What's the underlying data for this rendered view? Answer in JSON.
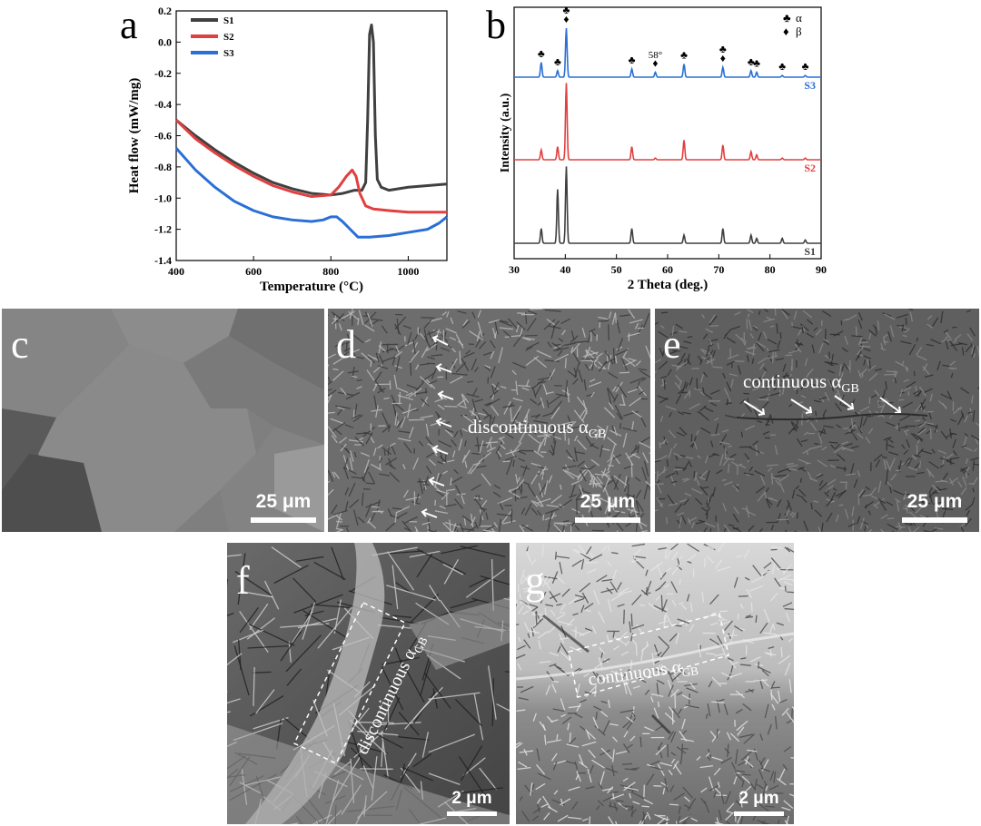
{
  "panels": {
    "a": {
      "letter": "a",
      "chart_data": {
        "type": "line",
        "xlabel": "Temperature (°C)",
        "ylabel": "Heat flow (mW/mg)",
        "xlim": [
          400,
          1100
        ],
        "ylim": [
          -1.4,
          0.2
        ],
        "xticks": [
          400,
          600,
          800,
          1000
        ],
        "yticks": [
          -1.4,
          -1.2,
          -1.0,
          -0.8,
          -0.6,
          -0.4,
          -0.2,
          0.0,
          0.2
        ],
        "ytick_labels": [
          "-1.4",
          "-1.2",
          "-1.0",
          "-0.8",
          "-0.6",
          "-0.4",
          "-0.2",
          "0.0",
          "0.2"
        ],
        "legend_position": "top-left",
        "series": [
          {
            "name": "S1",
            "color": "#404040",
            "x": [
              400,
              450,
              500,
              550,
              600,
              650,
              700,
              750,
              800,
              830,
              860,
              880,
              890,
              895,
              900,
              905,
              910,
              915,
              920,
              930,
              950,
              1000,
              1050,
              1100
            ],
            "y": [
              -0.5,
              -0.6,
              -0.69,
              -0.77,
              -0.84,
              -0.9,
              -0.94,
              -0.97,
              -0.98,
              -0.97,
              -0.95,
              -0.95,
              -0.9,
              -0.5,
              0.05,
              0.11,
              0.0,
              -0.6,
              -0.88,
              -0.93,
              -0.95,
              -0.93,
              -0.92,
              -0.91
            ]
          },
          {
            "name": "S2",
            "color": "#e04040",
            "x": [
              400,
              450,
              500,
              550,
              600,
              650,
              700,
              750,
              800,
              820,
              840,
              855,
              865,
              875,
              890,
              910,
              950,
              1000,
              1050,
              1100
            ],
            "y": [
              -0.5,
              -0.62,
              -0.71,
              -0.79,
              -0.86,
              -0.92,
              -0.96,
              -0.99,
              -0.98,
              -0.93,
              -0.86,
              -0.82,
              -0.86,
              -0.97,
              -1.05,
              -1.07,
              -1.08,
              -1.09,
              -1.09,
              -1.09
            ]
          },
          {
            "name": "S3",
            "color": "#2a6fd6",
            "x": [
              400,
              450,
              500,
              550,
              600,
              650,
              700,
              750,
              780,
              800,
              815,
              830,
              850,
              870,
              900,
              950,
              1000,
              1050,
              1080,
              1100
            ],
            "y": [
              -0.68,
              -0.82,
              -0.93,
              -1.02,
              -1.08,
              -1.12,
              -1.14,
              -1.15,
              -1.14,
              -1.12,
              -1.12,
              -1.15,
              -1.2,
              -1.25,
              -1.25,
              -1.24,
              -1.22,
              -1.2,
              -1.16,
              -1.12
            ]
          }
        ]
      }
    },
    "b": {
      "letter": "b",
      "chart_data": {
        "type": "line",
        "xlabel": "2 Theta (deg.)",
        "ylabel": "Intensity (a.u.)",
        "xlim": [
          30,
          90
        ],
        "xticks": [
          30,
          40,
          50,
          60,
          70,
          80,
          90
        ],
        "legend": [
          {
            "symbol": "♣",
            "label": "α"
          },
          {
            "symbol": "♦",
            "label": "β"
          }
        ],
        "legend_position": "top-right",
        "annotation": "58°",
        "peak_markers": [
          {
            "x": 35.3,
            "symbol": "♣"
          },
          {
            "x": 38.5,
            "symbol": "♣"
          },
          {
            "x": 40.2,
            "symbol": "♣♦"
          },
          {
            "x": 53.0,
            "symbol": "♣"
          },
          {
            "x": 57.6,
            "symbol": "♦"
          },
          {
            "x": 63.2,
            "symbol": "♣"
          },
          {
            "x": 70.8,
            "symbol": "♣♦"
          },
          {
            "x": 76.3,
            "symbol": "♣"
          },
          {
            "x": 77.4,
            "symbol": "♣"
          },
          {
            "x": 82.4,
            "symbol": "♣"
          },
          {
            "x": 86.9,
            "symbol": "♣"
          }
        ],
        "series": [
          {
            "name": "S1",
            "color": "#404040",
            "peaks": [
              [
                35.3,
                0.09
              ],
              [
                38.5,
                0.33
              ],
              [
                40.2,
                0.47
              ],
              [
                53.0,
                0.09
              ],
              [
                63.2,
                0.05
              ],
              [
                70.8,
                0.09
              ],
              [
                76.3,
                0.05
              ],
              [
                77.4,
                0.03
              ],
              [
                82.4,
                0.03
              ],
              [
                86.9,
                0.02
              ]
            ]
          },
          {
            "name": "S2",
            "color": "#e04040",
            "peaks": [
              [
                35.3,
                0.06
              ],
              [
                38.5,
                0.08
              ],
              [
                40.2,
                0.47
              ],
              [
                53.0,
                0.08
              ],
              [
                57.6,
                0.01
              ],
              [
                63.2,
                0.12
              ],
              [
                70.8,
                0.09
              ],
              [
                76.3,
                0.05
              ],
              [
                77.4,
                0.03
              ],
              [
                82.4,
                0.01
              ],
              [
                86.9,
                0.01
              ]
            ]
          },
          {
            "name": "S3",
            "color": "#2a6fd6",
            "peaks": [
              [
                35.3,
                0.09
              ],
              [
                38.5,
                0.04
              ],
              [
                40.2,
                0.3
              ],
              [
                53.0,
                0.05
              ],
              [
                57.6,
                0.03
              ],
              [
                63.2,
                0.08
              ],
              [
                70.8,
                0.06
              ],
              [
                76.3,
                0.04
              ],
              [
                77.4,
                0.03
              ],
              [
                82.4,
                0.01
              ],
              [
                86.9,
                0.01
              ]
            ]
          }
        ]
      }
    },
    "c": {
      "letter": "c",
      "scale": "25 μm"
    },
    "d": {
      "letter": "d",
      "scale": "25 μm",
      "label_main": "discontinuous α",
      "label_sub": "GB"
    },
    "e": {
      "letter": "e",
      "scale": "25 μm",
      "label_main": "continuous α",
      "label_sub": "GB"
    },
    "f": {
      "letter": "f",
      "scale": "2 μm",
      "label_main": "discontinuous α",
      "label_sub": "GB"
    },
    "g": {
      "letter": "g",
      "scale": "2 μm",
      "label_main": "continuous α",
      "label_sub": "GB"
    }
  },
  "colors": {
    "s1": "#404040",
    "s2": "#e04040",
    "s3": "#2a6fd6"
  }
}
